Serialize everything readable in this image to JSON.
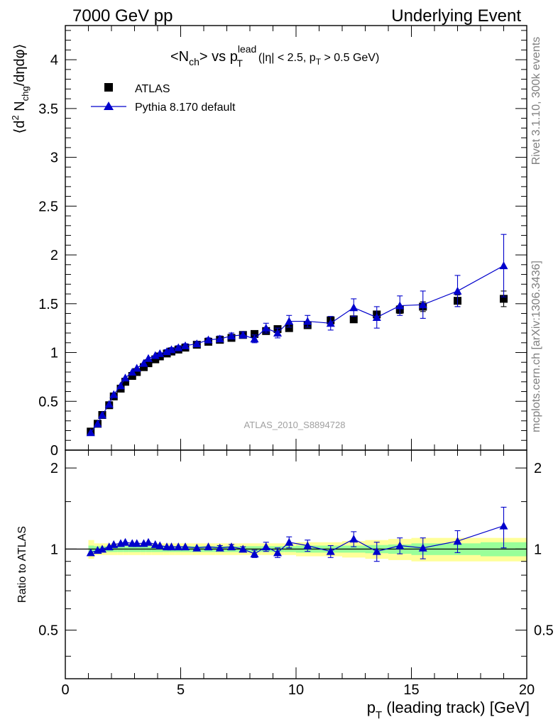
{
  "header": {
    "left": "7000 GeV pp",
    "right": "Underlying Event"
  },
  "side_labels": {
    "top": "Rivet 3.1.10,  300k events",
    "bottom": "mcplots.cern.ch [arXiv:1306.3436]"
  },
  "watermark": "ATLAS_2010_S8894728",
  "colors": {
    "data": "#000000",
    "mc": "#0000cc",
    "band_inner": "#99ff99",
    "band_outer": "#ffff99"
  },
  "chart_data": [
    {
      "type": "scatter",
      "panel": "main",
      "title": {
        "prefix": "<N",
        "prefix_sub": "ch",
        "middle": "> vs p",
        "middle_sup": "lead",
        "middle_sub": "T",
        "cut_open": "(|η| < 2.5, p",
        "cut_sub": "T",
        "cut_close": " > 0.5 GeV)"
      },
      "ylabel": {
        "a": "⟨d",
        "a_sup": "2",
        "b": " N",
        "b_sub": "chg",
        "c": "/dηdφ⟩"
      },
      "xlim": [
        0,
        20
      ],
      "ylim": [
        0,
        4.35
      ],
      "yticks": [
        "0",
        "0.5",
        "1",
        "1.5",
        "2",
        "2.5",
        "3",
        "3.5",
        "4"
      ],
      "legend_position": "top-left",
      "legend": {
        "data": "ATLAS",
        "mc": "Pythia 8.170 default"
      },
      "x": [
        1.1,
        1.4,
        1.6,
        1.9,
        2.1,
        2.4,
        2.6,
        2.9,
        3.1,
        3.4,
        3.6,
        3.9,
        4.1,
        4.4,
        4.6,
        4.9,
        5.2,
        5.7,
        6.2,
        6.7,
        7.2,
        7.7,
        8.2,
        8.7,
        9.2,
        9.7,
        10.5,
        11.5,
        12.5,
        13.5,
        14.5,
        15.5,
        17.0,
        19.0
      ],
      "series": [
        {
          "name": "ATLAS",
          "marker": "square",
          "y": [
            0.19,
            0.27,
            0.36,
            0.46,
            0.55,
            0.63,
            0.7,
            0.76,
            0.8,
            0.85,
            0.89,
            0.93,
            0.96,
            0.99,
            1.01,
            1.03,
            1.05,
            1.08,
            1.11,
            1.13,
            1.15,
            1.18,
            1.19,
            1.22,
            1.24,
            1.25,
            1.28,
            1.33,
            1.34,
            1.39,
            1.44,
            1.47,
            1.53,
            1.55
          ],
          "yerr": [
            0.004,
            0.005,
            0.006,
            0.007,
            0.008,
            0.009,
            0.01,
            0.01,
            0.01,
            0.01,
            0.01,
            0.01,
            0.01,
            0.01,
            0.01,
            0.01,
            0.01,
            0.012,
            0.012,
            0.013,
            0.014,
            0.014,
            0.015,
            0.016,
            0.017,
            0.018,
            0.02,
            0.025,
            0.03,
            0.035,
            0.04,
            0.05,
            0.06,
            0.08
          ]
        },
        {
          "name": "Pythia 8.170 default",
          "marker": "triangle",
          "y": [
            0.18,
            0.27,
            0.36,
            0.47,
            0.57,
            0.66,
            0.74,
            0.8,
            0.84,
            0.89,
            0.94,
            0.97,
            0.99,
            1.01,
            1.03,
            1.05,
            1.07,
            1.09,
            1.13,
            1.14,
            1.17,
            1.18,
            1.14,
            1.25,
            1.2,
            1.32,
            1.32,
            1.3,
            1.46,
            1.36,
            1.48,
            1.49,
            1.63,
            1.89
          ],
          "yerr": [
            0.01,
            0.01,
            0.01,
            0.01,
            0.01,
            0.01,
            0.01,
            0.01,
            0.01,
            0.01,
            0.01,
            0.01,
            0.01,
            0.02,
            0.02,
            0.02,
            0.02,
            0.02,
            0.02,
            0.03,
            0.03,
            0.03,
            0.04,
            0.05,
            0.05,
            0.06,
            0.06,
            0.07,
            0.09,
            0.11,
            0.1,
            0.14,
            0.16,
            0.32
          ]
        }
      ]
    },
    {
      "type": "scatter",
      "panel": "ratio",
      "ylabel": "Ratio to ATLAS",
      "xlabel": {
        "a": "p",
        "a_sub": "T",
        "b": " (leading track) [GeV]"
      },
      "xlim": [
        0,
        20
      ],
      "ylim": [
        0.33,
        2.33
      ],
      "xticks": [
        "0",
        "5",
        "10",
        "15",
        "20"
      ],
      "yticks": [
        "0.5",
        "1",
        "2"
      ],
      "series": [
        {
          "name": "Pythia 8.170 default",
          "marker": "triangle",
          "y": [
            0.97,
            0.99,
            1.0,
            1.02,
            1.04,
            1.05,
            1.06,
            1.05,
            1.05,
            1.05,
            1.06,
            1.04,
            1.03,
            1.02,
            1.02,
            1.02,
            1.02,
            1.01,
            1.02,
            1.01,
            1.02,
            1.0,
            0.96,
            1.02,
            0.97,
            1.06,
            1.03,
            0.98,
            1.09,
            0.98,
            1.03,
            1.01,
            1.07,
            1.22
          ],
          "yerr": [
            0.01,
            0.01,
            0.01,
            0.01,
            0.01,
            0.01,
            0.01,
            0.01,
            0.01,
            0.01,
            0.01,
            0.01,
            0.01,
            0.01,
            0.01,
            0.01,
            0.01,
            0.01,
            0.01,
            0.02,
            0.02,
            0.02,
            0.03,
            0.04,
            0.04,
            0.05,
            0.05,
            0.05,
            0.07,
            0.08,
            0.07,
            0.09,
            0.1,
            0.21
          ]
        }
      ],
      "bands": {
        "x_edges": [
          1.0,
          1.25,
          1.5,
          1.75,
          2.0,
          2.25,
          2.5,
          2.75,
          3.0,
          3.25,
          3.5,
          3.75,
          4.0,
          4.25,
          4.5,
          4.75,
          5.0,
          5.5,
          6.0,
          6.5,
          7.0,
          7.5,
          8.0,
          8.5,
          9.0,
          9.5,
          10.0,
          11.0,
          12.0,
          13.0,
          14.0,
          15.0,
          16.0,
          18.0,
          20.0
        ],
        "inner": [
          0.03,
          0.025,
          0.025,
          0.025,
          0.025,
          0.025,
          0.025,
          0.025,
          0.025,
          0.025,
          0.025,
          0.025,
          0.025,
          0.025,
          0.025,
          0.025,
          0.025,
          0.025,
          0.025,
          0.025,
          0.025,
          0.025,
          0.025,
          0.025,
          0.025,
          0.025,
          0.03,
          0.03,
          0.03,
          0.035,
          0.04,
          0.05,
          0.05,
          0.06
        ],
        "outer": [
          0.08,
          0.05,
          0.05,
          0.05,
          0.05,
          0.05,
          0.05,
          0.05,
          0.05,
          0.05,
          0.05,
          0.05,
          0.05,
          0.05,
          0.05,
          0.05,
          0.05,
          0.05,
          0.05,
          0.05,
          0.05,
          0.05,
          0.05,
          0.05,
          0.05,
          0.05,
          0.06,
          0.06,
          0.07,
          0.08,
          0.09,
          0.1,
          0.1,
          0.1
        ]
      }
    }
  ]
}
